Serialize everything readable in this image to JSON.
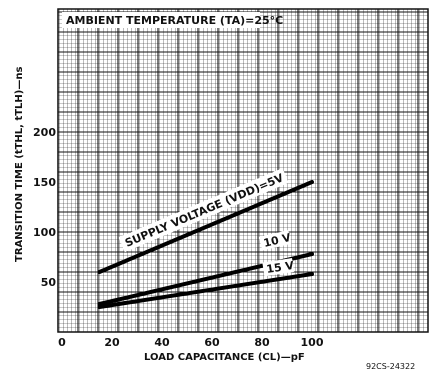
{
  "chart_data": {
    "type": "line",
    "title": "AMBIENT TEMPERATURE (TA)=25°C",
    "xlabel": "LOAD CAPACITANCE (CL)—pF",
    "ylabel": "TRANSITION TIME (tTHL, tTLH)—ns",
    "xlim": [
      0,
      120
    ],
    "ylim": [
      0,
      300
    ],
    "x_ticks": [
      "0",
      "20",
      "40",
      "60",
      "80",
      "100"
    ],
    "y_ticks": [
      "50",
      "100",
      "150",
      "200"
    ],
    "grid": true,
    "series": [
      {
        "name": "SUPPLY VOLTAGE (VDD)=5V",
        "x": [
          15,
          100
        ],
        "y": [
          60,
          150
        ]
      },
      {
        "name": "10 V",
        "x": [
          15,
          100
        ],
        "y": [
          28,
          78
        ]
      },
      {
        "name": "15 V",
        "x": [
          15,
          100
        ],
        "y": [
          25,
          58
        ]
      }
    ]
  },
  "figure_id": "92CS-24322"
}
